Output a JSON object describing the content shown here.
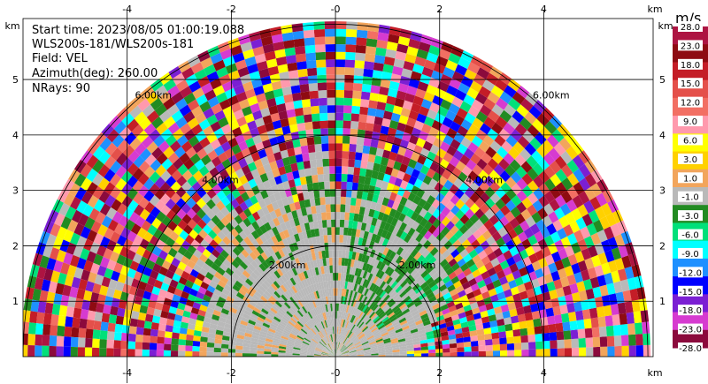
{
  "chart_data": {
    "type": "heatmap",
    "subtype": "ppi-sector",
    "field": "VEL",
    "units": "km",
    "x_ticks": [
      -4,
      -2,
      0,
      2,
      4
    ],
    "x_tick_labels": [
      "-4",
      "-2",
      "-0",
      "2",
      "4"
    ],
    "y_ticks": [
      1,
      2,
      3,
      4,
      5
    ],
    "y_tick_labels": [
      "1",
      "2",
      "3",
      "4",
      "5"
    ],
    "xlim": [
      -6.0,
      6.1
    ],
    "ylim": [
      0,
      6.1
    ],
    "axis_unit_label": "km",
    "range_rings_km": [
      2,
      4,
      6
    ],
    "range_ring_labels": [
      "2.00km",
      "4.00km",
      "6.00km"
    ],
    "grid": true,
    "info": {
      "start_time": "Start time: 2023/08/05 01:00:19.088",
      "instrument": "WLS200s-181/WLS200s-181",
      "field": "Field: VEL",
      "azimuth": "Azimuth(deg): 260.00",
      "nrays": "NRays: 90"
    },
    "colorbar": {
      "title": "m/s",
      "labels": [
        "28.0",
        "23.0",
        "18.0",
        "15.0",
        "12.0",
        "9.0",
        "6.0",
        "3.0",
        "1.0",
        "-1.0",
        "-3.0",
        "-6.0",
        "-9.0",
        "-12.0",
        "-15.0",
        "-18.0",
        "-23.0",
        "-28.0"
      ],
      "colors": [
        "#ad1442",
        "#8e0b12",
        "#c41d27",
        "#e4504a",
        "#f26f63",
        "#ff99ad",
        "#ffff00",
        "#ffd100",
        "#f2a55c",
        "#b9b9b9",
        "#228b22",
        "#00e07a",
        "#00ffff",
        "#1e90ff",
        "#0000ff",
        "#7b1fd3",
        "#d63bd0",
        "#8b0a3c"
      ]
    }
  }
}
